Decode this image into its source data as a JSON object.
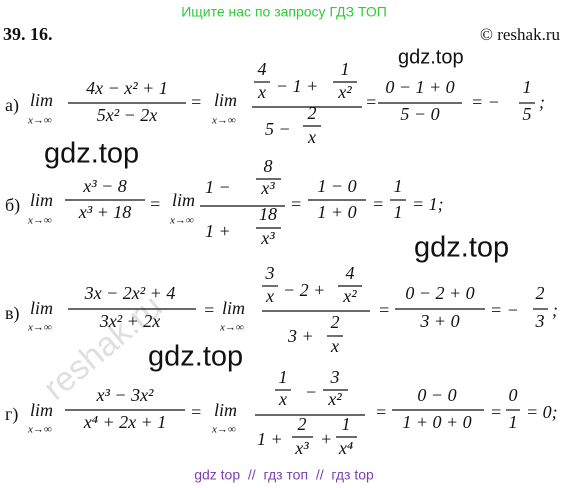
{
  "header": {
    "banner": "Ищите нас по запросу ГДЗ ТОП",
    "number": "39. 16.",
    "copyright": "© reshak.ru"
  },
  "watermarks": [
    "gdz.top",
    "gdz.top",
    "gdz.top",
    "gdz.top",
    "reshak.ru"
  ],
  "problems": [
    {
      "parts": [
        "а)",
        "lim",
        "x→∞",
        "4x − x² + 1",
        "5x² − 2x",
        "=",
        "lim",
        "x→∞",
        "4",
        "x",
        "− 1 +",
        "1",
        "x²",
        "5 −",
        "2",
        "x",
        "=",
        "0 − 1 + 0",
        "5 − 0",
        "= −",
        "1",
        "5",
        ";"
      ]
    },
    {
      "parts": [
        "б)",
        "lim",
        "x→∞",
        "x³ − 8",
        "x³ + 18",
        "=",
        "lim",
        "x→∞",
        "1 −",
        "8",
        "x³",
        "1 +",
        "18",
        "x³",
        "=",
        "1 − 0",
        "1 + 0",
        "=",
        "1",
        "1",
        "= 1;"
      ]
    },
    {
      "parts": [
        "в)",
        "lim",
        "x→∞",
        "3x − 2x² + 4",
        "3x² + 2x",
        "=",
        "lim",
        "x→∞",
        "3",
        "x",
        "− 2 +",
        "4",
        "x²",
        "3 +",
        "2",
        "x",
        "=",
        "0 − 2 + 0",
        "3 + 0",
        "= −",
        "2",
        "3",
        ";"
      ]
    },
    {
      "parts": [
        "г)",
        "lim",
        "x→∞",
        "x³ − 3x²",
        "x⁴ + 2x + 1",
        "=",
        "lim",
        "x→∞",
        "1",
        "x",
        "−",
        "3",
        "x²",
        "1 +",
        "2",
        "x³",
        "+",
        "1",
        "x⁴",
        "=",
        "0 − 0",
        "1 + 0 + 0",
        "=",
        "0",
        "1",
        "= 0;"
      ]
    }
  ],
  "footer": "gdz top  //  гдз топ  //  гдз top"
}
